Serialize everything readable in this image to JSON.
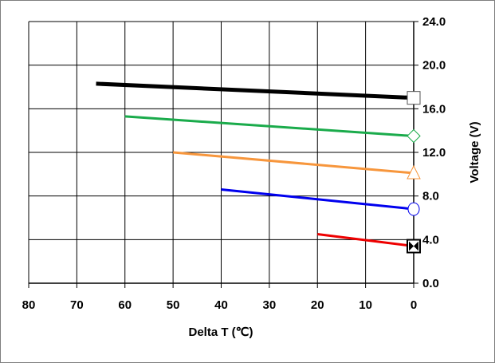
{
  "chart_data": {
    "type": "line",
    "xlabel": "Delta T (℃)",
    "ylabel": "Voltage (V)",
    "xlim": [
      0,
      80
    ],
    "x_reversed": true,
    "ylim": [
      0,
      24
    ],
    "x_ticks": [
      "80",
      "70",
      "60",
      "50",
      "40",
      "30",
      "20",
      "10",
      "0"
    ],
    "y_ticks": [
      "0.0",
      "4.0",
      "8.0",
      "12.0",
      "16.0",
      "20.0",
      "24.0"
    ],
    "y_axis_side": "right",
    "grid": true,
    "series": [
      {
        "color": "#000000",
        "marker": "square",
        "x": [
          66,
          0
        ],
        "y": [
          18.3,
          17.0
        ]
      },
      {
        "color": "#1aab4b",
        "marker": "diamond",
        "x": [
          60,
          0
        ],
        "y": [
          15.3,
          13.5
        ]
      },
      {
        "color": "#f7963c",
        "marker": "triangle",
        "x": [
          50,
          0
        ],
        "y": [
          12.0,
          10.1
        ]
      },
      {
        "color": "#0000ee",
        "marker": "circle",
        "x": [
          40,
          0
        ],
        "y": [
          8.6,
          6.8
        ]
      },
      {
        "color": "#ee0000",
        "marker": "square-x",
        "x": [
          20,
          0
        ],
        "y": [
          4.5,
          3.4
        ]
      }
    ]
  }
}
